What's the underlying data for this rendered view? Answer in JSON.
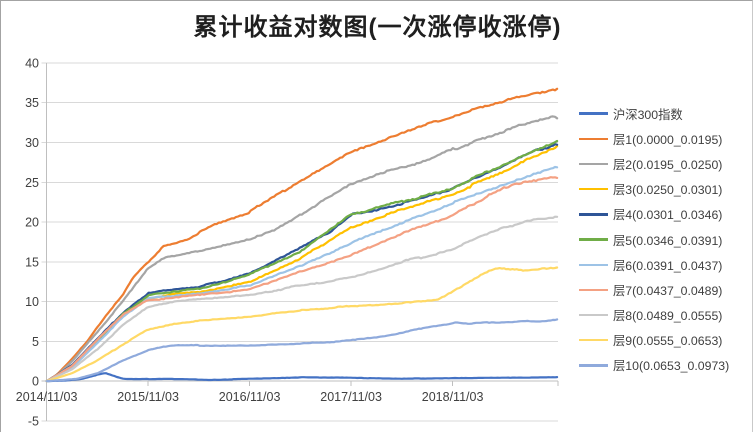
{
  "chart_data": {
    "type": "line",
    "title": "累计收益对数图(一次涨停收涨停)",
    "legend_position": "right",
    "grid": true,
    "x_axis": {
      "range_years": [
        0,
        5.05
      ],
      "ticks": [
        {
          "year": 0,
          "label": "2014/11/03"
        },
        {
          "year": 1,
          "label": "2015/11/03"
        },
        {
          "year": 2,
          "label": "2016/11/03"
        },
        {
          "year": 3,
          "label": "2017/11/03"
        },
        {
          "year": 4,
          "label": "2018/11/03"
        }
      ]
    },
    "y_axis": {
      "range": [
        -5,
        40
      ],
      "step": 5,
      "ticks": [
        40,
        35,
        30,
        25,
        20,
        15,
        10,
        5,
        0,
        -5
      ]
    },
    "series": [
      {
        "name": "沪深300指数",
        "color": "#4472C4",
        "anchors": [
          [
            0,
            0
          ],
          [
            0.2,
            0.1
          ],
          [
            0.35,
            0.3
          ],
          [
            0.5,
            0.8
          ],
          [
            0.58,
            1.0
          ],
          [
            0.65,
            0.7
          ],
          [
            0.75,
            0.3
          ],
          [
            0.9,
            0.25
          ],
          [
            1.2,
            0.3
          ],
          [
            1.6,
            0.15
          ],
          [
            2,
            0.3
          ],
          [
            2.5,
            0.5
          ],
          [
            3,
            0.45
          ],
          [
            3.5,
            0.3
          ],
          [
            4,
            0.4
          ],
          [
            4.5,
            0.45
          ],
          [
            5.03,
            0.5
          ]
        ]
      },
      {
        "name": "层1(0.0000_0.0195)",
        "color": "#ED7D31",
        "anchors": [
          [
            0,
            0
          ],
          [
            0.1,
            0.8
          ],
          [
            0.25,
            2.8
          ],
          [
            0.4,
            5
          ],
          [
            0.5,
            6.8
          ],
          [
            0.6,
            8.5
          ],
          [
            0.75,
            10.8
          ],
          [
            0.85,
            13
          ],
          [
            1,
            15
          ],
          [
            1.15,
            17
          ],
          [
            1.4,
            17.8
          ],
          [
            1.5,
            18.6
          ],
          [
            1.7,
            20
          ],
          [
            2,
            21.3
          ],
          [
            2.25,
            23.2
          ],
          [
            2.5,
            25.2
          ],
          [
            2.75,
            27
          ],
          [
            3,
            28.9
          ],
          [
            3.25,
            30
          ],
          [
            3.5,
            31.2
          ],
          [
            3.75,
            32.3
          ],
          [
            4,
            33.3
          ],
          [
            4.25,
            34.3
          ],
          [
            4.5,
            35.2
          ],
          [
            4.75,
            36
          ],
          [
            5.03,
            36.7
          ]
        ]
      },
      {
        "name": "层2(0.0195_0.0250)",
        "color": "#A5A5A5",
        "anchors": [
          [
            0,
            0
          ],
          [
            0.1,
            0.7
          ],
          [
            0.25,
            2.5
          ],
          [
            0.5,
            6.2
          ],
          [
            0.75,
            10
          ],
          [
            1,
            14.2
          ],
          [
            1.15,
            15.5
          ],
          [
            1.3,
            15.8
          ],
          [
            1.5,
            16.3
          ],
          [
            1.75,
            17
          ],
          [
            2,
            17.8
          ],
          [
            2.25,
            19
          ],
          [
            2.5,
            20.9
          ],
          [
            2.75,
            22.8
          ],
          [
            3,
            24.7
          ],
          [
            3.25,
            26
          ],
          [
            3.5,
            26.8
          ],
          [
            3.75,
            27.8
          ],
          [
            4,
            29.1
          ],
          [
            4.25,
            30.3
          ],
          [
            4.5,
            31.3
          ],
          [
            4.75,
            32.5
          ],
          [
            5.03,
            33.2
          ]
        ]
      },
      {
        "name": "层3(0.0250_0.0301)",
        "color": "#FFC000",
        "anchors": [
          [
            0,
            0
          ],
          [
            0.25,
            1.8
          ],
          [
            0.5,
            5
          ],
          [
            0.75,
            8.2
          ],
          [
            1,
            10.4
          ],
          [
            1.25,
            11
          ],
          [
            1.5,
            11.2
          ],
          [
            2,
            12.4
          ],
          [
            2.5,
            15.4
          ],
          [
            3,
            19.4
          ],
          [
            3.5,
            21.5
          ],
          [
            4,
            23.6
          ],
          [
            4.5,
            26.3
          ],
          [
            4.75,
            28
          ],
          [
            5.03,
            29.4
          ]
        ]
      },
      {
        "name": "层4(0.0301_0.0346)",
        "color": "#2E5597",
        "anchors": [
          [
            0,
            0
          ],
          [
            0.25,
            2
          ],
          [
            0.5,
            5.3
          ],
          [
            0.75,
            8.6
          ],
          [
            1,
            11
          ],
          [
            1.25,
            11.6
          ],
          [
            1.5,
            11.8
          ],
          [
            2,
            13.6
          ],
          [
            2.3,
            15.5
          ],
          [
            2.5,
            16.8
          ],
          [
            2.8,
            18.9
          ],
          [
            3,
            20.9
          ],
          [
            3.2,
            21.3
          ],
          [
            3.5,
            22.3
          ],
          [
            4,
            24.2
          ],
          [
            4.5,
            27
          ],
          [
            4.75,
            28.6
          ],
          [
            5.03,
            29.9
          ]
        ]
      },
      {
        "name": "层5(0.0346_0.0391)",
        "color": "#70AD47",
        "anchors": [
          [
            0,
            0
          ],
          [
            0.25,
            1.9
          ],
          [
            0.5,
            5.1
          ],
          [
            0.75,
            8.4
          ],
          [
            1,
            10.8
          ],
          [
            1.25,
            11.3
          ],
          [
            1.5,
            11.6
          ],
          [
            2,
            13.4
          ],
          [
            2.5,
            16.3
          ],
          [
            3,
            21
          ],
          [
            3.5,
            22.6
          ],
          [
            4,
            24.3
          ],
          [
            4.5,
            27.2
          ],
          [
            4.75,
            28.8
          ],
          [
            5.03,
            30.2
          ]
        ]
      },
      {
        "name": "层6(0.0391_0.0437)",
        "color": "#9DC3E6",
        "anchors": [
          [
            0,
            0
          ],
          [
            0.25,
            1.7
          ],
          [
            0.5,
            4.8
          ],
          [
            0.75,
            8
          ],
          [
            1,
            10.4
          ],
          [
            1.5,
            11
          ],
          [
            2,
            12
          ],
          [
            2.5,
            14.5
          ],
          [
            3,
            17.4
          ],
          [
            3.5,
            19.8
          ],
          [
            4,
            22.4
          ],
          [
            4.5,
            24.8
          ],
          [
            5.03,
            27
          ]
        ]
      },
      {
        "name": "层7(0.0437_0.0489)",
        "color": "#F4A183",
        "anchors": [
          [
            0,
            0
          ],
          [
            0.25,
            1.9
          ],
          [
            0.5,
            5.2
          ],
          [
            0.75,
            8.3
          ],
          [
            1,
            10.2
          ],
          [
            1.5,
            10.8
          ],
          [
            2,
            11.5
          ],
          [
            2.5,
            13.8
          ],
          [
            3,
            15.8
          ],
          [
            3.5,
            18.5
          ],
          [
            4,
            20.9
          ],
          [
            4.3,
            23
          ],
          [
            4.6,
            24.8
          ],
          [
            5.03,
            25.6
          ]
        ]
      },
      {
        "name": "层8(0.0489_0.0555)",
        "color": "#C9C9C9",
        "anchors": [
          [
            0,
            0
          ],
          [
            0.25,
            1.5
          ],
          [
            0.5,
            4
          ],
          [
            0.75,
            7
          ],
          [
            1,
            9.3
          ],
          [
            1.25,
            10
          ],
          [
            1.5,
            10.3
          ],
          [
            2,
            10.8
          ],
          [
            2.5,
            12
          ],
          [
            3,
            13
          ],
          [
            3.5,
            15
          ],
          [
            4,
            16.5
          ],
          [
            4.2,
            17.8
          ],
          [
            4.5,
            19.3
          ],
          [
            4.75,
            20.2
          ],
          [
            5.03,
            20.7
          ]
        ]
      },
      {
        "name": "层9(0.0555_0.0653)",
        "color": "#FFD966",
        "anchors": [
          [
            0,
            0
          ],
          [
            0.25,
            1
          ],
          [
            0.5,
            2.6
          ],
          [
            0.75,
            4.6
          ],
          [
            1,
            6.5
          ],
          [
            1.25,
            7.2
          ],
          [
            1.5,
            7.6
          ],
          [
            2,
            8.1
          ],
          [
            2.5,
            8.9
          ],
          [
            3,
            9.4
          ],
          [
            3.5,
            9.8
          ],
          [
            3.85,
            10.2
          ],
          [
            4.1,
            12
          ],
          [
            4.3,
            13.6
          ],
          [
            4.45,
            14.2
          ],
          [
            4.7,
            14.0
          ],
          [
            5.03,
            14.3
          ]
        ]
      },
      {
        "name": "层10(0.0653_0.0973)",
        "color": "#8FAADC",
        "anchors": [
          [
            0,
            0
          ],
          [
            0.3,
            0.3
          ],
          [
            0.5,
            1
          ],
          [
            0.75,
            2.6
          ],
          [
            0.9,
            3.4
          ],
          [
            1,
            3.9
          ],
          [
            1.15,
            4.3
          ],
          [
            1.3,
            4.5
          ],
          [
            1.6,
            4.5
          ],
          [
            2,
            4.5
          ],
          [
            2.3,
            4.6
          ],
          [
            2.6,
            4.8
          ],
          [
            2.9,
            5
          ],
          [
            3.1,
            5.3
          ],
          [
            3.3,
            5.6
          ],
          [
            3.5,
            6.1
          ],
          [
            3.7,
            6.7
          ],
          [
            3.9,
            7.1
          ],
          [
            4.05,
            7.4
          ],
          [
            4.15,
            7.2
          ],
          [
            4.3,
            7.4
          ],
          [
            4.5,
            7.4
          ],
          [
            4.7,
            7.6
          ],
          [
            4.85,
            7.5
          ],
          [
            5.03,
            7.8
          ]
        ]
      }
    ]
  },
  "styles": {
    "background": "#FFFFFF",
    "grid_color": "#D9D9D9",
    "axis_color": "#BFBFBF",
    "label_color": "#404040",
    "title_color": "#1F1F1F",
    "border_color": "#A3A3A3"
  }
}
